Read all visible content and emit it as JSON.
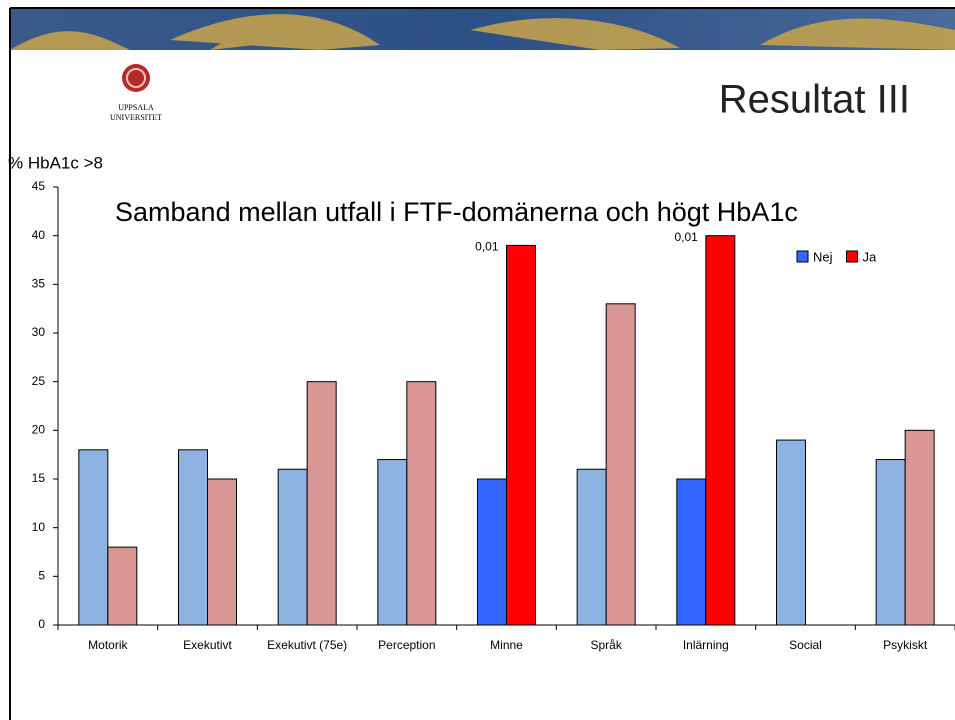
{
  "header": {
    "title": "Resultat III",
    "logo": [
      "UPPSALA",
      "UNIVERSITET"
    ]
  },
  "chart_data": {
    "type": "bar",
    "title": "Samband mellan utfall i FTF-domänerna och högt HbA1c",
    "y_label": "% HbA1c >8",
    "categories": [
      "Motorik",
      "Exekutivt",
      "Exekutivt (75e)",
      "Perception",
      "Minne",
      "Språk",
      "Inlärning",
      "Social",
      "Psykiskt"
    ],
    "series": [
      {
        "name": "Nej",
        "color": "#3366ff",
        "values": [
          18,
          18,
          16,
          17,
          15,
          16,
          15,
          19,
          17
        ],
        "colors": [
          "#8db3e2",
          "#8db3e2",
          "#8db3e2",
          "#8db3e2",
          "#3366ff",
          "#8db3e2",
          "#3366ff",
          "#8db3e2",
          "#8db3e2"
        ]
      },
      {
        "name": "Ja",
        "color": "#ff0000",
        "values": [
          8,
          15,
          25,
          25,
          39,
          33,
          40,
          null,
          20
        ],
        "colors": [
          "#d99694",
          "#d99694",
          "#d99694",
          "#d99694",
          "#ff0000",
          "#d99694",
          "#ff0000",
          "#d99694",
          "#d99694"
        ]
      }
    ],
    "annotations": [
      {
        "text": "0,01",
        "category": "Minne",
        "series": "Ja"
      },
      {
        "text": "0,01",
        "category": "Inlärning",
        "series": "Ja"
      }
    ],
    "ylim": [
      0,
      45
    ],
    "yticks": [
      0,
      5,
      10,
      15,
      20,
      25,
      30,
      35,
      40,
      45
    ],
    "legend": "top-right"
  }
}
